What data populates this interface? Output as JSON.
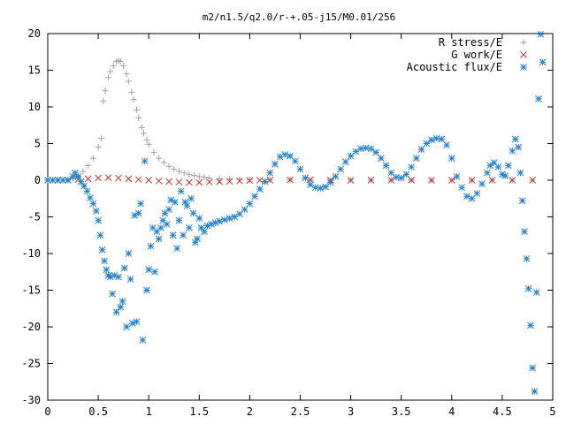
{
  "chart_data": {
    "type": "scatter",
    "title": "m2/n1.5/q2.0/r-+.05-j15/M0.01/256",
    "xlabel": "",
    "ylabel": "",
    "xlim": [
      0,
      5
    ],
    "ylim": [
      -30,
      20
    ],
    "xticks": [
      "0",
      "0.5",
      "1",
      "1.5",
      "2",
      "2.5",
      "3",
      "3.5",
      "4",
      "4.5",
      "5"
    ],
    "yticks": [
      "20",
      "15",
      "10",
      "5",
      "0",
      "-5",
      "-10",
      "-15",
      "-20",
      "-25",
      "-30"
    ],
    "grid": false,
    "legend_position": "top-right",
    "series": [
      {
        "name": "R stress/E",
        "marker": "plus",
        "color": "#a0a0a0",
        "points": [
          [
            0.0,
            0.0
          ],
          [
            0.05,
            0.0
          ],
          [
            0.1,
            0.0
          ],
          [
            0.15,
            0.0
          ],
          [
            0.2,
            0.05
          ],
          [
            0.25,
            0.2
          ],
          [
            0.3,
            0.6
          ],
          [
            0.35,
            1.2
          ],
          [
            0.4,
            2.0
          ],
          [
            0.45,
            3.0
          ],
          [
            0.5,
            4.5
          ],
          [
            0.53,
            5.7
          ],
          [
            0.55,
            10.8
          ],
          [
            0.57,
            12.2
          ],
          [
            0.6,
            14.0
          ],
          [
            0.62,
            14.8
          ],
          [
            0.65,
            15.6
          ],
          [
            0.68,
            16.2
          ],
          [
            0.7,
            16.3
          ],
          [
            0.72,
            16.2
          ],
          [
            0.75,
            15.6
          ],
          [
            0.78,
            14.5
          ],
          [
            0.8,
            13.5
          ],
          [
            0.83,
            12.0
          ],
          [
            0.85,
            11.0
          ],
          [
            0.88,
            9.6
          ],
          [
            0.9,
            8.5
          ],
          [
            0.93,
            7.2
          ],
          [
            0.95,
            6.4
          ],
          [
            0.98,
            5.5
          ],
          [
            1.0,
            4.9
          ],
          [
            1.05,
            3.8
          ],
          [
            1.1,
            3.0
          ],
          [
            1.15,
            2.4
          ],
          [
            1.2,
            1.9
          ],
          [
            1.25,
            1.5
          ],
          [
            1.3,
            1.2
          ],
          [
            1.35,
            1.0
          ],
          [
            1.4,
            0.8
          ],
          [
            1.45,
            0.65
          ],
          [
            1.5,
            0.5
          ],
          [
            1.55,
            0.4
          ],
          [
            1.6,
            0.3
          ],
          [
            1.7,
            0.2
          ],
          [
            1.8,
            0.15
          ],
          [
            1.9,
            0.1
          ],
          [
            2.0,
            0.08
          ],
          [
            2.2,
            0.05
          ],
          [
            2.4,
            0.04
          ],
          [
            2.6,
            0.03
          ],
          [
            2.8,
            0.02
          ],
          [
            3.0,
            0.02
          ],
          [
            3.2,
            0.01
          ],
          [
            3.4,
            0.01
          ],
          [
            3.6,
            0.01
          ],
          [
            3.8,
            0.0
          ],
          [
            4.0,
            0.0
          ],
          [
            4.2,
            0.0
          ],
          [
            4.4,
            0.0
          ],
          [
            4.6,
            0.0
          ],
          [
            4.8,
            0.0
          ]
        ]
      },
      {
        "name": "G work/E",
        "marker": "cross",
        "color": "#cc3333",
        "points": [
          [
            0.0,
            0.0
          ],
          [
            0.1,
            0.0
          ],
          [
            0.2,
            0.02
          ],
          [
            0.3,
            0.1
          ],
          [
            0.4,
            0.2
          ],
          [
            0.5,
            0.3
          ],
          [
            0.6,
            0.35
          ],
          [
            0.7,
            0.3
          ],
          [
            0.8,
            0.2
          ],
          [
            0.9,
            0.1
          ],
          [
            1.0,
            0.0
          ],
          [
            1.1,
            -0.1
          ],
          [
            1.2,
            -0.2
          ],
          [
            1.3,
            -0.25
          ],
          [
            1.4,
            -0.3
          ],
          [
            1.5,
            -0.3
          ],
          [
            1.6,
            -0.25
          ],
          [
            1.7,
            -0.2
          ],
          [
            1.8,
            -0.15
          ],
          [
            1.9,
            -0.1
          ],
          [
            2.0,
            -0.05
          ],
          [
            2.1,
            0.0
          ],
          [
            2.2,
            0.02
          ],
          [
            2.4,
            0.05
          ],
          [
            2.6,
            0.05
          ],
          [
            2.8,
            0.0
          ],
          [
            3.0,
            -0.02
          ],
          [
            3.2,
            0.02
          ],
          [
            3.4,
            0.0
          ],
          [
            3.6,
            0.02
          ],
          [
            3.8,
            0.0
          ],
          [
            4.0,
            0.0
          ],
          [
            4.2,
            0.0
          ],
          [
            4.4,
            0.0
          ],
          [
            4.6,
            0.0
          ],
          [
            4.8,
            0.0
          ]
        ]
      },
      {
        "name": "Acoustic flux/E",
        "marker": "star",
        "color": "#1f7fd4",
        "points": [
          [
            0.0,
            0.0
          ],
          [
            0.05,
            0.0
          ],
          [
            0.1,
            0.0
          ],
          [
            0.15,
            0.0
          ],
          [
            0.2,
            0.0
          ],
          [
            0.25,
            0.5
          ],
          [
            0.27,
            1.0
          ],
          [
            0.3,
            0.5
          ],
          [
            0.33,
            -0.2
          ],
          [
            0.36,
            -0.8
          ],
          [
            0.39,
            -1.5
          ],
          [
            0.42,
            -2.4
          ],
          [
            0.45,
            -3.2
          ],
          [
            0.48,
            -4.2
          ],
          [
            0.5,
            -5.5
          ],
          [
            0.52,
            -7.5
          ],
          [
            0.54,
            -9.5
          ],
          [
            0.56,
            -11.0
          ],
          [
            0.58,
            -12.2
          ],
          [
            0.6,
            -13.0
          ],
          [
            0.62,
            -13.2
          ],
          [
            0.64,
            -15.5
          ],
          [
            0.66,
            -13.0
          ],
          [
            0.68,
            -18.0
          ],
          [
            0.7,
            -13.2
          ],
          [
            0.72,
            -17.3
          ],
          [
            0.74,
            -16.5
          ],
          [
            0.76,
            -12.0
          ],
          [
            0.78,
            -20.0
          ],
          [
            0.8,
            -10.0
          ],
          [
            0.82,
            -13.5
          ],
          [
            0.84,
            -19.5
          ],
          [
            0.86,
            -4.8
          ],
          [
            0.88,
            -19.3
          ],
          [
            0.9,
            -4.5
          ],
          [
            0.92,
            -3.2
          ],
          [
            0.94,
            -21.8
          ],
          [
            0.96,
            2.6
          ],
          [
            0.98,
            -15.0
          ],
          [
            1.0,
            -12.2
          ],
          [
            1.02,
            -9.0
          ],
          [
            1.04,
            -6.5
          ],
          [
            1.06,
            -12.5
          ],
          [
            1.08,
            -7.0
          ],
          [
            1.1,
            -8.0
          ],
          [
            1.12,
            -6.5
          ],
          [
            1.14,
            -5.5
          ],
          [
            1.16,
            -4.5
          ],
          [
            1.18,
            -6.0
          ],
          [
            1.2,
            -4.0
          ],
          [
            1.22,
            -2.7
          ],
          [
            1.24,
            -7.5
          ],
          [
            1.26,
            -3.0
          ],
          [
            1.28,
            -9.3
          ],
          [
            1.3,
            -5.5
          ],
          [
            1.32,
            -1.5
          ],
          [
            1.34,
            -7.5
          ],
          [
            1.36,
            -3.0
          ],
          [
            1.38,
            -3.5
          ],
          [
            1.4,
            -6.5
          ],
          [
            1.42,
            -2.5
          ],
          [
            1.44,
            -4.5
          ],
          [
            1.46,
            -8.5
          ],
          [
            1.48,
            -8.0
          ],
          [
            1.5,
            -5.2
          ],
          [
            1.52,
            -6.5
          ],
          [
            1.55,
            -7.0
          ],
          [
            1.58,
            -6.2
          ],
          [
            1.62,
            -6.0
          ],
          [
            1.66,
            -5.8
          ],
          [
            1.7,
            -5.6
          ],
          [
            1.75,
            -5.4
          ],
          [
            1.8,
            -5.2
          ],
          [
            1.85,
            -5.0
          ],
          [
            1.9,
            -4.6
          ],
          [
            1.95,
            -4.0
          ],
          [
            2.0,
            -3.2
          ],
          [
            2.05,
            -2.2
          ],
          [
            2.1,
            -1.2
          ],
          [
            2.15,
            -0.2
          ],
          [
            2.2,
            1.0
          ],
          [
            2.25,
            2.2
          ],
          [
            2.3,
            3.2
          ],
          [
            2.35,
            3.5
          ],
          [
            2.4,
            3.3
          ],
          [
            2.45,
            2.6
          ],
          [
            2.5,
            1.5
          ],
          [
            2.55,
            0.3
          ],
          [
            2.6,
            -0.6
          ],
          [
            2.65,
            -1.0
          ],
          [
            2.7,
            -1.1
          ],
          [
            2.75,
            -0.9
          ],
          [
            2.8,
            -0.3
          ],
          [
            2.85,
            0.5
          ],
          [
            2.9,
            1.5
          ],
          [
            2.95,
            2.5
          ],
          [
            3.0,
            3.3
          ],
          [
            3.05,
            3.9
          ],
          [
            3.1,
            4.3
          ],
          [
            3.15,
            4.4
          ],
          [
            3.2,
            4.3
          ],
          [
            3.25,
            3.8
          ],
          [
            3.3,
            3.0
          ],
          [
            3.35,
            2.0
          ],
          [
            3.4,
            1.0
          ],
          [
            3.45,
            0.4
          ],
          [
            3.5,
            0.3
          ],
          [
            3.55,
            0.8
          ],
          [
            3.6,
            1.8
          ],
          [
            3.65,
            3.0
          ],
          [
            3.7,
            4.2
          ],
          [
            3.75,
            5.0
          ],
          [
            3.8,
            5.5
          ],
          [
            3.85,
            5.7
          ],
          [
            3.9,
            5.6
          ],
          [
            3.95,
            4.8
          ],
          [
            4.0,
            3.0
          ],
          [
            4.05,
            0.5
          ],
          [
            4.1,
            -1.0
          ],
          [
            4.15,
            -2.2
          ],
          [
            4.2,
            -2.5
          ],
          [
            4.25,
            -1.8
          ],
          [
            4.3,
            -0.5
          ],
          [
            4.35,
            1.0
          ],
          [
            4.38,
            2.0
          ],
          [
            4.42,
            2.4
          ],
          [
            4.46,
            1.8
          ],
          [
            4.5,
            0.8
          ],
          [
            4.53,
            0.6
          ],
          [
            4.56,
            2.0
          ],
          [
            4.6,
            4.0
          ],
          [
            4.63,
            5.6
          ],
          [
            4.66,
            4.5
          ],
          [
            4.68,
            1.0
          ],
          [
            4.7,
            -2.8
          ],
          [
            4.72,
            -7.0
          ],
          [
            4.74,
            -10.7
          ],
          [
            4.76,
            -14.8
          ],
          [
            4.78,
            -19.8
          ],
          [
            4.8,
            -25.6
          ],
          [
            4.82,
            -28.8
          ],
          [
            4.84,
            -15.3
          ],
          [
            4.86,
            11.1
          ],
          [
            4.88,
            19.9
          ],
          [
            4.9,
            16.1
          ]
        ]
      }
    ]
  }
}
